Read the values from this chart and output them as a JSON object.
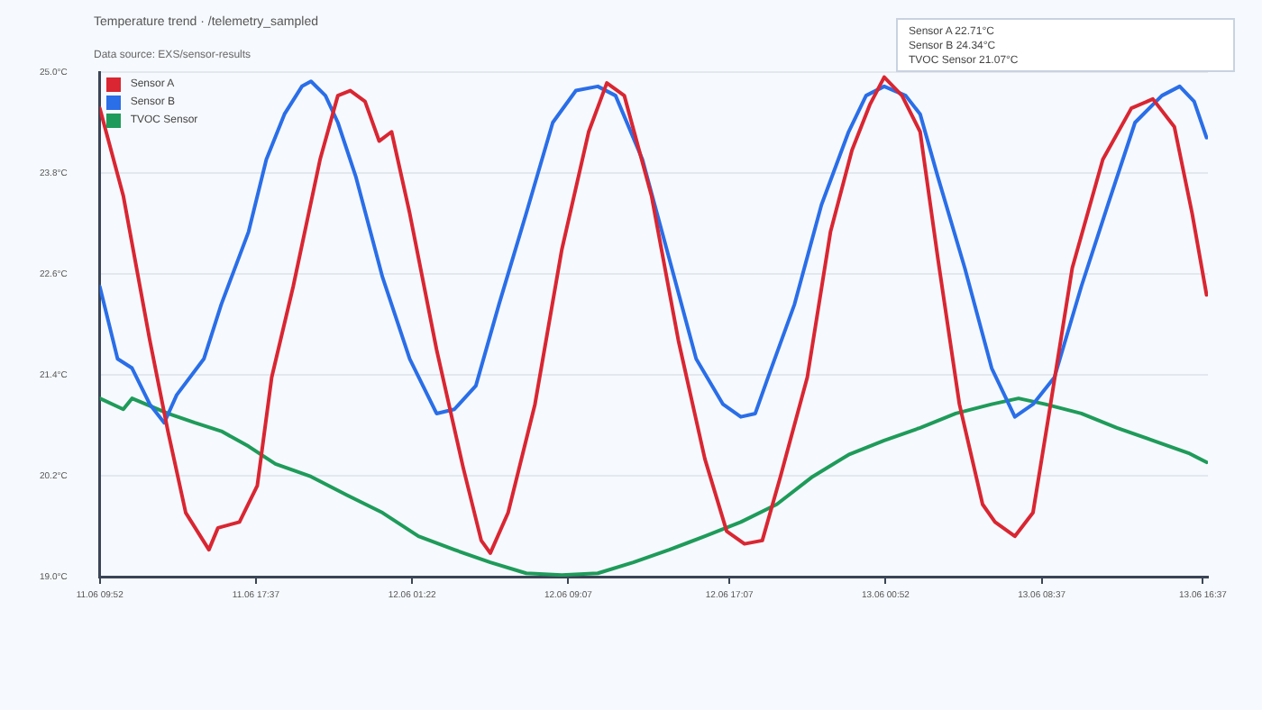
{
  "chart_data": {
    "type": "line",
    "title": "Temperature trend · /telemetry_sampled",
    "subtitle": "Data source: EXS/sensor-results",
    "annotations": [
      "Sensor A 22.71°C",
      "Sensor B 24.34°C",
      "TVOC Sensor 21.07°C"
    ],
    "series": [
      {
        "name": "Sensor A",
        "color": "#d92632",
        "x": [
          "--06-11T09:52",
          "--06-11T11:02",
          "--06-11T12:21",
          "--06-11T13:15",
          "--06-11T14:08",
          "--06-11T15:17",
          "--06-11T15:44",
          "--06-11T16:48",
          "--06-11T17:41",
          "--06-11T18:24",
          "--06-11T19:28",
          "--06-11T20:48",
          "--06-11T21:41",
          "--06-11T22:18",
          "--06-11T23:02",
          "--06-11T23:44",
          "--06-12T00:21",
          "--06-12T01:15",
          "--06-12T02:35",
          "--06-12T03:54",
          "--06-12T04:48",
          "--06-12T05:15",
          "--06-12T06:08",
          "--06-12T07:28",
          "--06-12T08:48",
          "--06-12T10:08",
          "--06-12T11:02",
          "--06-12T11:54",
          "--06-12T13:15",
          "--06-12T14:35",
          "--06-12T15:54",
          "--06-12T16:59",
          "--06-12T17:52",
          "--06-12T18:45",
          "--06-12T19:39",
          "--06-12T20:59",
          "--06-12T22:08",
          "--06-12T23:12",
          "--06-13T00:05",
          "--06-13T00:48",
          "--06-13T01:41",
          "--06-13T02:35",
          "--06-13T03:28",
          "--06-13T04:32",
          "--06-13T05:41",
          "--06-13T06:18",
          "--06-13T07:17",
          "--06-13T08:11",
          "--06-13T08:59",
          "--06-13T10:08",
          "--06-13T11:39",
          "--06-13T13:04",
          "--06-13T14:08",
          "--06-13T15:12",
          "--06-13T16:05",
          "--06-13T16:48"
        ],
        "values": [
          24.57,
          23.53,
          21.81,
          20.73,
          19.76,
          19.32,
          19.58,
          19.65,
          20.08,
          21.37,
          22.45,
          23.96,
          24.72,
          24.78,
          24.65,
          24.18,
          24.29,
          23.32,
          21.7,
          20.3,
          19.43,
          19.28,
          19.76,
          21.05,
          22.89,
          24.29,
          24.87,
          24.72,
          23.53,
          21.81,
          20.4,
          19.54,
          19.39,
          19.43,
          20.19,
          21.37,
          23.1,
          24.07,
          24.61,
          24.94,
          24.72,
          24.29,
          22.78,
          21.05,
          19.86,
          19.65,
          19.48,
          19.76,
          20.94,
          22.67,
          23.96,
          24.57,
          24.68,
          24.35,
          23.32,
          22.35
        ]
      },
      {
        "name": "Sensor B",
        "color": "#2a6ee8",
        "x": [
          "--06-11T09:52",
          "--06-11T10:45",
          "--06-11T11:28",
          "--06-11T12:21",
          "--06-11T13:04",
          "--06-11T13:41",
          "--06-11T15:02",
          "--06-11T15:54",
          "--06-11T17:15",
          "--06-11T18:08",
          "--06-11T19:02",
          "--06-11T19:54",
          "--06-11T20:21",
          "--06-11T21:04",
          "--06-11T21:41",
          "--06-11T22:35",
          "--06-11T23:54",
          "--06-12T01:15",
          "--06-12T02:35",
          "--06-12T03:28",
          "--06-12T04:32",
          "--06-12T05:41",
          "--06-12T07:02",
          "--06-12T08:21",
          "--06-12T09:30",
          "--06-12T10:35",
          "--06-12T11:28",
          "--06-12T12:48",
          "--06-12T14:08",
          "--06-12T15:28",
          "--06-12T16:48",
          "--06-12T17:41",
          "--06-12T18:24",
          "--06-12T19:02",
          "--06-12T20:21",
          "--06-12T21:41",
          "--06-12T23:02",
          "--06-12T23:54",
          "--06-13T00:48",
          "--06-13T01:52",
          "--06-13T02:35",
          "--06-13T03:28",
          "--06-13T04:48",
          "--06-13T06:08",
          "--06-13T07:17",
          "--06-13T08:11",
          "--06-13T09:15",
          "--06-13T10:35",
          "--06-13T11:54",
          "--06-13T13:15",
          "--06-13T14:35",
          "--06-13T15:28",
          "--06-13T16:11",
          "--06-13T16:48"
        ],
        "values": [
          22.45,
          21.59,
          21.48,
          21.05,
          20.83,
          21.16,
          21.59,
          22.24,
          23.1,
          23.96,
          24.5,
          24.83,
          24.89,
          24.72,
          24.4,
          23.75,
          22.56,
          21.59,
          20.94,
          20.99,
          21.27,
          22.24,
          23.32,
          24.4,
          24.78,
          24.83,
          24.72,
          23.96,
          22.78,
          21.59,
          21.05,
          20.9,
          20.94,
          21.37,
          22.24,
          23.42,
          24.29,
          24.72,
          24.83,
          24.72,
          24.5,
          23.75,
          22.67,
          21.48,
          20.9,
          21.05,
          21.37,
          22.45,
          23.42,
          24.4,
          24.72,
          24.83,
          24.65,
          24.22
        ]
      },
      {
        "name": "TVOC Sensor",
        "color": "#1e9b5a",
        "x": [
          "--06-11T09:52",
          "--06-11T11:02",
          "--06-11T11:28",
          "--06-11T13:15",
          "--06-11T14:35",
          "--06-11T15:54",
          "--06-11T17:15",
          "--06-11T18:35",
          "--06-11T20:21",
          "--06-11T22:08",
          "--06-11T23:54",
          "--06-12T01:41",
          "--06-12T03:28",
          "--06-12T05:15",
          "--06-12T07:02",
          "--06-12T08:48",
          "--06-12T10:35",
          "--06-12T12:21",
          "--06-12T14:08",
          "--06-12T15:54",
          "--06-12T17:41",
          "--06-12T19:28",
          "--06-12T21:15",
          "--06-12T23:02",
          "--06-13T00:48",
          "--06-13T02:35",
          "--06-13T04:21",
          "--06-13T06:08",
          "--06-13T07:28",
          "--06-13T08:48",
          "--06-13T10:35",
          "--06-13T12:21",
          "--06-13T14:08",
          "--06-13T15:54",
          "--06-13T16:48"
        ],
        "values": [
          21.12,
          20.99,
          21.12,
          20.94,
          20.83,
          20.73,
          20.55,
          20.34,
          20.19,
          19.97,
          19.76,
          19.48,
          19.32,
          19.17,
          19.04,
          19.02,
          19.04,
          19.17,
          19.32,
          19.48,
          19.65,
          19.86,
          20.19,
          20.45,
          20.62,
          20.77,
          20.94,
          21.05,
          21.12,
          21.05,
          20.94,
          20.77,
          20.62,
          20.47,
          20.36
        ]
      }
    ],
    "xlim": [
      "--06-11T09:52",
      "--06-13T16:52"
    ],
    "xticks": [
      {
        "value": "--06-11T09:52",
        "label": "11.06 09:52"
      },
      {
        "value": "--06-11T17:37",
        "label": "11.06 17:37"
      },
      {
        "value": "--06-12T01:22",
        "label": "12.06 01:22"
      },
      {
        "value": "--06-12T09:07",
        "label": "12.06 09:07"
      },
      {
        "value": "--06-12T17:07",
        "label": "12.06 17:07"
      },
      {
        "value": "--06-13T00:52",
        "label": "13.06 00:52"
      },
      {
        "value": "--06-13T08:37",
        "label": "13.06 08:37"
      },
      {
        "value": "--06-13T16:37",
        "label": "13.06 16:37"
      }
    ],
    "ylim": [
      19,
      25
    ],
    "yticks": [
      {
        "value": 19,
        "label": "19.0°C"
      },
      {
        "value": 20.2,
        "label": "20.2°C"
      },
      {
        "value": 21.4,
        "label": "21.4°C"
      },
      {
        "value": 22.6,
        "label": "22.6°C"
      },
      {
        "value": 23.8,
        "label": "23.8°C"
      },
      {
        "value": 25,
        "label": "25.0°C"
      }
    ],
    "grid": "y",
    "legend": "top left",
    "marker": "none",
    "line_style": "solid"
  }
}
